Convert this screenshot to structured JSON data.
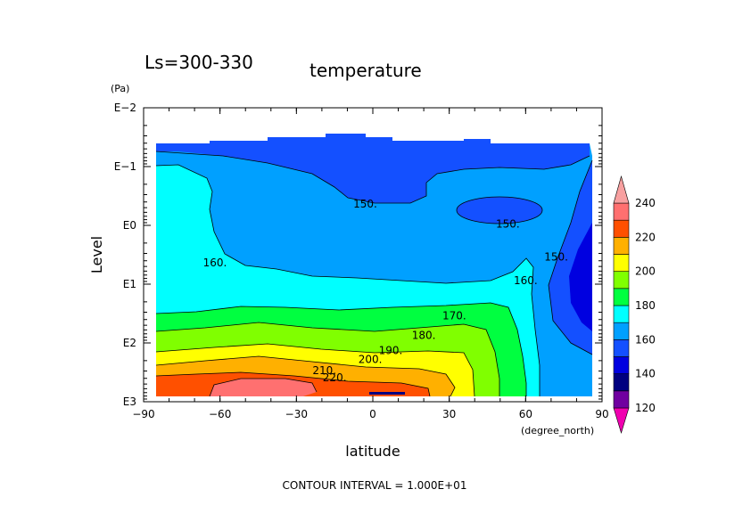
{
  "chart_data": {
    "type": "heatmap",
    "subtype": "filled-contour",
    "title_left": "Ls=300-330",
    "title_right": "temperature",
    "xlabel": "latitude",
    "x_unit": "(degree_north)",
    "ylabel": "Level",
    "y_unit": "(Pa)",
    "x_ticks": [
      "−90",
      "−60",
      "−30",
      "0",
      "30",
      "60",
      "90"
    ],
    "x_tick_values": [
      -90,
      -60,
      -30,
      0,
      30,
      60,
      90
    ],
    "xlim": [
      -90,
      90
    ],
    "y_ticks": [
      "E−2",
      "E−1",
      "E0",
      "E1",
      "E2",
      "E3"
    ],
    "y_tick_values": [
      0.01,
      0.1,
      1,
      10,
      100,
      1000
    ],
    "ylim": [
      1000,
      0.01
    ],
    "y_scale": "log",
    "footer": "CONTOUR INTERVAL = 1.000E+01",
    "contour_interval": 10,
    "colorbar": {
      "levels": [
        120,
        130,
        140,
        150,
        160,
        170,
        180,
        190,
        200,
        210,
        220,
        230,
        240
      ],
      "labels": [
        "120",
        "140",
        "160",
        "180",
        "200",
        "220",
        "240"
      ],
      "colors": [
        "#f000b0",
        "#7000a0",
        "#000080",
        "#0000e0",
        "#1450ff",
        "#00a0ff",
        "#00ffff",
        "#00ff40",
        "#80ff00",
        "#ffff00",
        "#ffb000",
        "#ff5000",
        "#ff7070",
        "#f8a0a0"
      ]
    },
    "contour_labels": [
      {
        "text": "150.",
        "lat": -3,
        "level": 0.5
      },
      {
        "text": "150.",
        "lat": 53,
        "level": 1.1
      },
      {
        "text": "150.",
        "lat": 72,
        "level": 4
      },
      {
        "text": "160.",
        "lat": -62,
        "level": 5
      },
      {
        "text": "160.",
        "lat": 60,
        "level": 10
      },
      {
        "text": "170.",
        "lat": 32,
        "level": 40
      },
      {
        "text": "180.",
        "lat": 20,
        "level": 85
      },
      {
        "text": "190.",
        "lat": 7,
        "level": 155
      },
      {
        "text": "200.",
        "lat": -1,
        "level": 220
      },
      {
        "text": "210.",
        "lat": -19,
        "level": 340
      },
      {
        "text": "220.",
        "lat": -15,
        "level": 450
      }
    ]
  }
}
